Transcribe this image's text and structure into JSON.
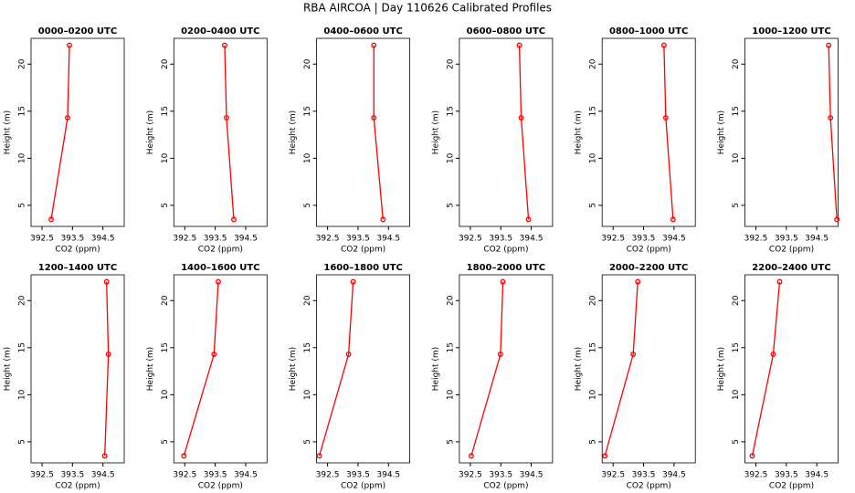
{
  "title": "RBA AIRCOA |  Day 110626  Calibrated Profiles",
  "chart_data": [
    {
      "type": "line",
      "title": "0000–0200 UTC",
      "xlabel": "CO2 (ppm)",
      "ylabel": "Height (m)",
      "x": [
        392.8,
        393.34,
        393.4
      ],
      "y": [
        3.5,
        14.3,
        22
      ],
      "color": "#ff0000",
      "xlim": [
        392.14,
        395.2
      ],
      "ylim": [
        2.76,
        22.74
      ],
      "xticks": [
        392.5,
        393.5,
        394.5
      ],
      "yticks": [
        5,
        10,
        15,
        20
      ]
    },
    {
      "type": "line",
      "title": "0200–0400 UTC",
      "xlabel": "CO2 (ppm)",
      "ylabel": "Height (m)",
      "x": [
        394.11,
        393.87,
        393.81
      ],
      "y": [
        3.5,
        14.3,
        22
      ],
      "color": "#ff0000",
      "xlim": [
        392.14,
        395.2
      ],
      "ylim": [
        2.76,
        22.74
      ],
      "xticks": [
        392.5,
        393.5,
        394.5
      ],
      "yticks": [
        5,
        10,
        15,
        20
      ]
    },
    {
      "type": "line",
      "title": "0400–0600 UTC",
      "xlabel": "CO2 (ppm)",
      "ylabel": "Height (m)",
      "x": [
        394.32,
        394.02,
        394.02
      ],
      "y": [
        3.5,
        14.3,
        22
      ],
      "color": "#ff0000",
      "xlim": [
        392.14,
        395.2
      ],
      "ylim": [
        2.76,
        22.74
      ],
      "xticks": [
        392.5,
        393.5,
        394.5
      ],
      "yticks": [
        5,
        10,
        15,
        20
      ]
    },
    {
      "type": "line",
      "title": "0600–0800 UTC",
      "xlabel": "CO2 (ppm)",
      "ylabel": "Height (m)",
      "x": [
        394.41,
        394.17,
        394.11
      ],
      "y": [
        3.5,
        14.3,
        22
      ],
      "color": "#ff0000",
      "xlim": [
        392.14,
        395.2
      ],
      "ylim": [
        2.76,
        22.74
      ],
      "xticks": [
        392.5,
        393.5,
        394.5
      ],
      "yticks": [
        5,
        10,
        15,
        20
      ]
    },
    {
      "type": "line",
      "title": "0800–1000 UTC",
      "xlabel": "CO2 (ppm)",
      "ylabel": "Height (m)",
      "x": [
        394.47,
        394.23,
        394.17
      ],
      "y": [
        3.5,
        14.3,
        22
      ],
      "color": "#ff0000",
      "xlim": [
        392.14,
        395.2
      ],
      "ylim": [
        2.76,
        22.74
      ],
      "xticks": [
        392.5,
        393.5,
        394.5
      ],
      "yticks": [
        5,
        10,
        15,
        20
      ]
    },
    {
      "type": "line",
      "title": "1000–1200 UTC",
      "xlabel": "CO2 (ppm)",
      "ylabel": "Height (m)",
      "x": [
        395.16,
        394.95,
        394.89
      ],
      "y": [
        3.5,
        14.3,
        22
      ],
      "color": "#ff0000",
      "xlim": [
        392.14,
        395.2
      ],
      "ylim": [
        2.76,
        22.74
      ],
      "xticks": [
        392.5,
        393.5,
        394.5
      ],
      "yticks": [
        5,
        10,
        15,
        20
      ]
    },
    {
      "type": "line",
      "title": "1200–1400 UTC",
      "xlabel": "CO2 (ppm)",
      "ylabel": "Height (m)",
      "x": [
        394.56,
        394.68,
        394.62
      ],
      "y": [
        3.5,
        14.3,
        22
      ],
      "color": "#ff0000",
      "xlim": [
        392.14,
        395.2
      ],
      "ylim": [
        2.76,
        22.74
      ],
      "xticks": [
        392.5,
        393.5,
        394.5
      ],
      "yticks": [
        5,
        10,
        15,
        20
      ]
    },
    {
      "type": "line",
      "title": "1400–1600 UTC",
      "xlabel": "CO2 (ppm)",
      "ylabel": "Height (m)",
      "x": [
        392.47,
        393.46,
        393.6
      ],
      "y": [
        3.5,
        14.3,
        22
      ],
      "color": "#ff0000",
      "xlim": [
        392.14,
        395.2
      ],
      "ylim": [
        2.76,
        22.74
      ],
      "xticks": [
        392.5,
        393.5,
        394.5
      ],
      "yticks": [
        5,
        10,
        15,
        20
      ]
    },
    {
      "type": "line",
      "title": "1600–1800 UTC",
      "xlabel": "CO2 (ppm)",
      "ylabel": "Height (m)",
      "x": [
        392.23,
        393.19,
        393.34
      ],
      "y": [
        3.5,
        14.3,
        22
      ],
      "color": "#ff0000",
      "xlim": [
        392.14,
        395.2
      ],
      "ylim": [
        2.76,
        22.74
      ],
      "xticks": [
        392.5,
        393.5,
        394.5
      ],
      "yticks": [
        5,
        10,
        15,
        20
      ]
    },
    {
      "type": "line",
      "title": "1800–2000 UTC",
      "xlabel": "CO2 (ppm)",
      "ylabel": "Height (m)",
      "x": [
        392.53,
        393.49,
        393.57
      ],
      "y": [
        3.5,
        14.3,
        22
      ],
      "color": "#ff0000",
      "xlim": [
        392.14,
        395.2
      ],
      "ylim": [
        2.76,
        22.74
      ],
      "xticks": [
        392.5,
        393.5,
        394.5
      ],
      "yticks": [
        5,
        10,
        15,
        20
      ]
    },
    {
      "type": "line",
      "title": "2000–2200 UTC",
      "xlabel": "CO2 (ppm)",
      "ylabel": "Height (m)",
      "x": [
        392.23,
        393.16,
        393.31
      ],
      "y": [
        3.5,
        14.3,
        22
      ],
      "color": "#ff0000",
      "xlim": [
        392.14,
        395.2
      ],
      "ylim": [
        2.76,
        22.74
      ],
      "xticks": [
        392.5,
        393.5,
        394.5
      ],
      "yticks": [
        5,
        10,
        15,
        20
      ]
    },
    {
      "type": "line",
      "title": "2200–2400 UTC",
      "xlabel": "CO2 (ppm)",
      "ylabel": "Height (m)",
      "x": [
        392.38,
        393.07,
        393.28
      ],
      "y": [
        3.5,
        14.3,
        22
      ],
      "color": "#ff0000",
      "xlim": [
        392.14,
        395.2
      ],
      "ylim": [
        2.76,
        22.74
      ],
      "xticks": [
        392.5,
        393.5,
        394.5
      ],
      "yticks": [
        5,
        10,
        15,
        20
      ]
    }
  ]
}
